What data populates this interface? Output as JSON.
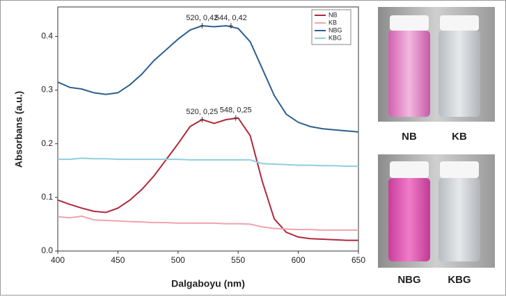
{
  "chart_data": {
    "type": "line",
    "x_label": "Dalgaboyu (nm)",
    "y_label": "Absorbans (a.u.)",
    "x": [
      400,
      410,
      420,
      430,
      440,
      450,
      460,
      470,
      480,
      490,
      500,
      510,
      520,
      530,
      540,
      550,
      560,
      570,
      580,
      590,
      600,
      610,
      620,
      630,
      640,
      650
    ],
    "series": [
      {
        "name": "NB",
        "color": "#b0283a",
        "values": [
          0.095,
          0.087,
          0.08,
          0.074,
          0.072,
          0.08,
          0.095,
          0.115,
          0.14,
          0.17,
          0.2,
          0.232,
          0.245,
          0.238,
          0.245,
          0.248,
          0.215,
          0.13,
          0.06,
          0.035,
          0.026,
          0.023,
          0.022,
          0.021,
          0.02,
          0.02
        ]
      },
      {
        "name": "KB",
        "color": "#f0a3ab",
        "values": [
          0.064,
          0.062,
          0.065,
          0.058,
          0.057,
          0.056,
          0.055,
          0.054,
          0.053,
          0.053,
          0.052,
          0.052,
          0.052,
          0.052,
          0.051,
          0.051,
          0.05,
          0.045,
          0.042,
          0.041,
          0.04,
          0.04,
          0.039,
          0.039,
          0.039,
          0.039
        ]
      },
      {
        "name": "NBG",
        "color": "#2b5f90",
        "values": [
          0.315,
          0.305,
          0.302,
          0.295,
          0.292,
          0.295,
          0.31,
          0.33,
          0.355,
          0.375,
          0.395,
          0.412,
          0.42,
          0.418,
          0.42,
          0.415,
          0.39,
          0.34,
          0.29,
          0.255,
          0.24,
          0.232,
          0.228,
          0.226,
          0.224,
          0.222
        ]
      },
      {
        "name": "KBG",
        "color": "#8fcde0",
        "values": [
          0.171,
          0.171,
          0.173,
          0.172,
          0.172,
          0.171,
          0.171,
          0.171,
          0.171,
          0.171,
          0.171,
          0.17,
          0.17,
          0.17,
          0.17,
          0.17,
          0.17,
          0.163,
          0.162,
          0.161,
          0.16,
          0.16,
          0.159,
          0.159,
          0.158,
          0.158
        ]
      }
    ],
    "annotations": [
      {
        "text": "520, 0,42",
        "x": 520,
        "y": 0.42
      },
      {
        "text": "544, 0,42",
        "x": 544,
        "y": 0.42
      },
      {
        "text": "520, 0,25",
        "x": 520,
        "y": 0.245
      },
      {
        "text": "548, 0,25",
        "x": 548,
        "y": 0.248
      }
    ],
    "xlim": [
      400,
      650
    ],
    "xticks": [
      400,
      450,
      500,
      550,
      600,
      650
    ],
    "ylim": [
      0,
      0.455
    ],
    "yticks": [
      {
        "value": 0,
        "label": "0.0"
      },
      0.1,
      0.2,
      0.3,
      0.4
    ],
    "legend": "upper right"
  },
  "photos": [
    {
      "labels": [
        "NB",
        "KB"
      ]
    },
    {
      "labels": [
        "NBG",
        "KBG"
      ]
    }
  ]
}
